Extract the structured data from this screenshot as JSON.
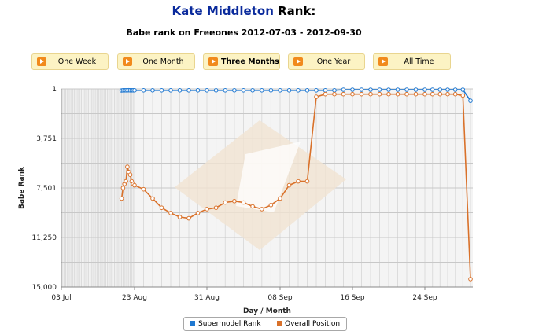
{
  "header": {
    "name": "Kate Middleton",
    "suffix": " Rank:",
    "subtitle": "Babe rank on Freeones 2012-07-03 - 2012-09-30"
  },
  "buttons": [
    {
      "label": "One Week",
      "active": false
    },
    {
      "label": "One Month",
      "active": false
    },
    {
      "label": "Three Months",
      "active": true
    },
    {
      "label": "One Year",
      "active": false
    },
    {
      "label": "All Time",
      "active": false
    }
  ],
  "colors": {
    "accent_icon": "#f18a1c",
    "title_name": "#0a2a9c",
    "supermodel_series": "#1f78d1",
    "overall_series": "#d9712a"
  },
  "chart_data": {
    "type": "line",
    "xlabel": "Day / Month",
    "ylabel": "Babe Rank",
    "x_range": [
      "2012-07-03",
      "2012-09-30"
    ],
    "ylim": [
      15000,
      1
    ],
    "y_reversed": true,
    "y_ticks": [
      "1",
      "3,751",
      "7,501",
      "11,250",
      "15,000"
    ],
    "y_tick_values": [
      1,
      3751,
      7501,
      11250,
      15000
    ],
    "x_ticks": [
      "03 Jul",
      "23 Aug",
      "31 Aug",
      "08 Sep",
      "16 Sep",
      "24 Sep"
    ],
    "grid": true,
    "legend": "bottom-center",
    "series": [
      {
        "name": "Supermodel Rank",
        "x": [
          "2012-08-14",
          "2012-08-15",
          "2012-08-16",
          "2012-08-17",
          "2012-08-18",
          "2012-08-19",
          "2012-08-20",
          "2012-08-21",
          "2012-08-22",
          "2012-08-23",
          "2012-08-24",
          "2012-08-25",
          "2012-08-26",
          "2012-08-27",
          "2012-08-28",
          "2012-08-29",
          "2012-08-30",
          "2012-08-31",
          "2012-09-01",
          "2012-09-02",
          "2012-09-03",
          "2012-09-04",
          "2012-09-05",
          "2012-09-06",
          "2012-09-07",
          "2012-09-08",
          "2012-09-09",
          "2012-09-10",
          "2012-09-11",
          "2012-09-12",
          "2012-09-13",
          "2012-09-14",
          "2012-09-15",
          "2012-09-16",
          "2012-09-17",
          "2012-09-18",
          "2012-09-19",
          "2012-09-20",
          "2012-09-21",
          "2012-09-22",
          "2012-09-23",
          "2012-09-24",
          "2012-09-25",
          "2012-09-26",
          "2012-09-27",
          "2012-09-28",
          "2012-09-29",
          "2012-09-30"
        ],
        "values": [
          120,
          110,
          110,
          110,
          110,
          105,
          110,
          110,
          110,
          110,
          110,
          110,
          110,
          110,
          110,
          110,
          110,
          110,
          110,
          110,
          110,
          110,
          110,
          110,
          110,
          110,
          110,
          110,
          110,
          110,
          110,
          110,
          60,
          60,
          60,
          60,
          60,
          60,
          60,
          60,
          60,
          60,
          60,
          60,
          60,
          60,
          60,
          900
        ]
      },
      {
        "name": "Overall Position",
        "x": [
          "2012-08-14",
          "2012-08-15",
          "2012-08-16",
          "2012-08-17",
          "2012-08-18",
          "2012-08-19",
          "2012-08-20",
          "2012-08-21",
          "2012-08-22",
          "2012-08-23",
          "2012-08-24",
          "2012-08-25",
          "2012-08-26",
          "2012-08-27",
          "2012-08-28",
          "2012-08-29",
          "2012-08-30",
          "2012-08-31",
          "2012-09-01",
          "2012-09-02",
          "2012-09-03",
          "2012-09-04",
          "2012-09-05",
          "2012-09-06",
          "2012-09-07",
          "2012-09-08",
          "2012-09-09",
          "2012-09-10",
          "2012-09-11",
          "2012-09-12",
          "2012-09-13",
          "2012-09-14",
          "2012-09-15",
          "2012-09-16",
          "2012-09-17",
          "2012-09-18",
          "2012-09-19",
          "2012-09-20",
          "2012-09-21",
          "2012-09-22",
          "2012-09-23",
          "2012-09-24",
          "2012-09-25",
          "2012-09-26",
          "2012-09-27",
          "2012-09-28",
          "2012-09-29",
          "2012-09-30"
        ],
        "values": [
          8300,
          7500,
          7200,
          7000,
          5900,
          6300,
          6500,
          7000,
          7200,
          7300,
          7600,
          8300,
          9000,
          9400,
          9700,
          9800,
          9400,
          9100,
          9000,
          8600,
          8500,
          8600,
          8900,
          9100,
          8800,
          8300,
          7300,
          7000,
          7000,
          600,
          400,
          400,
          400,
          400,
          400,
          400,
          400,
          400,
          400,
          400,
          400,
          400,
          400,
          400,
          400,
          400,
          500,
          14400
        ]
      }
    ]
  }
}
